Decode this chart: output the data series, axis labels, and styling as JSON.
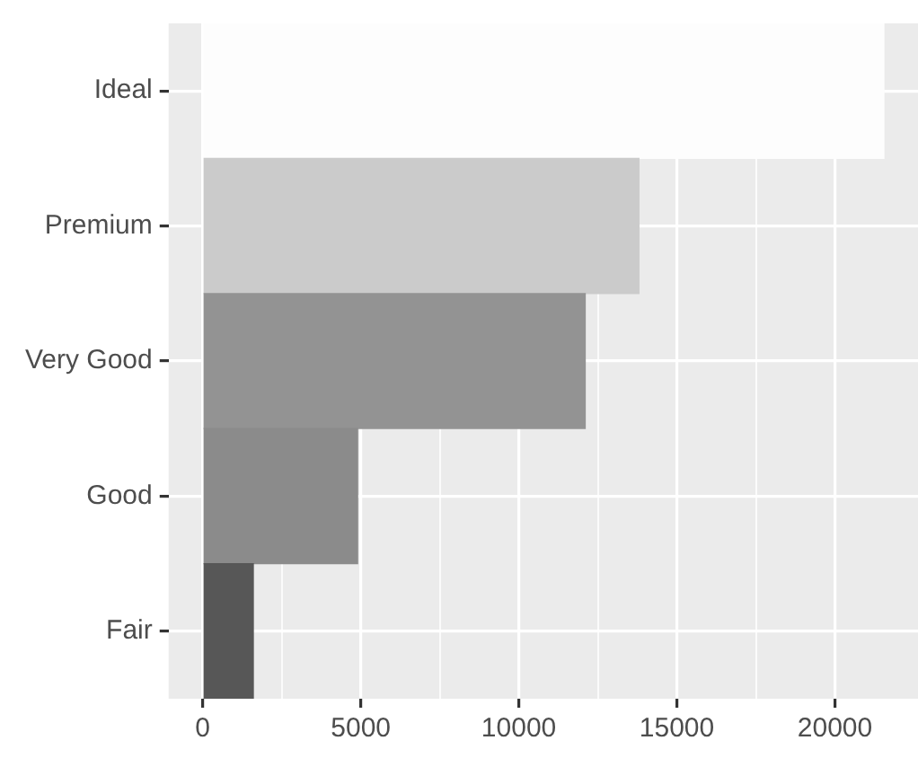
{
  "chart_data": {
    "type": "bar",
    "orientation": "horizontal",
    "categories": [
      "Ideal",
      "Premium",
      "Very Good",
      "Good",
      "Fair"
    ],
    "values": [
      21550,
      13800,
      12100,
      4900,
      1600
    ],
    "colors": [
      "#fdfdfd",
      "#cbcbcb",
      "#939393",
      "#8b8b8b",
      "#575757"
    ],
    "xlim": [
      -1078,
      22629
    ],
    "xticks": [
      0,
      {
        "value": 2500,
        "label": null
      },
      5000,
      {
        "value": 7500,
        "label": null
      },
      10000,
      {
        "value": 12500,
        "label": null
      },
      15000,
      {
        "value": 17500,
        "label": null
      },
      20000
    ],
    "grid": true
  }
}
